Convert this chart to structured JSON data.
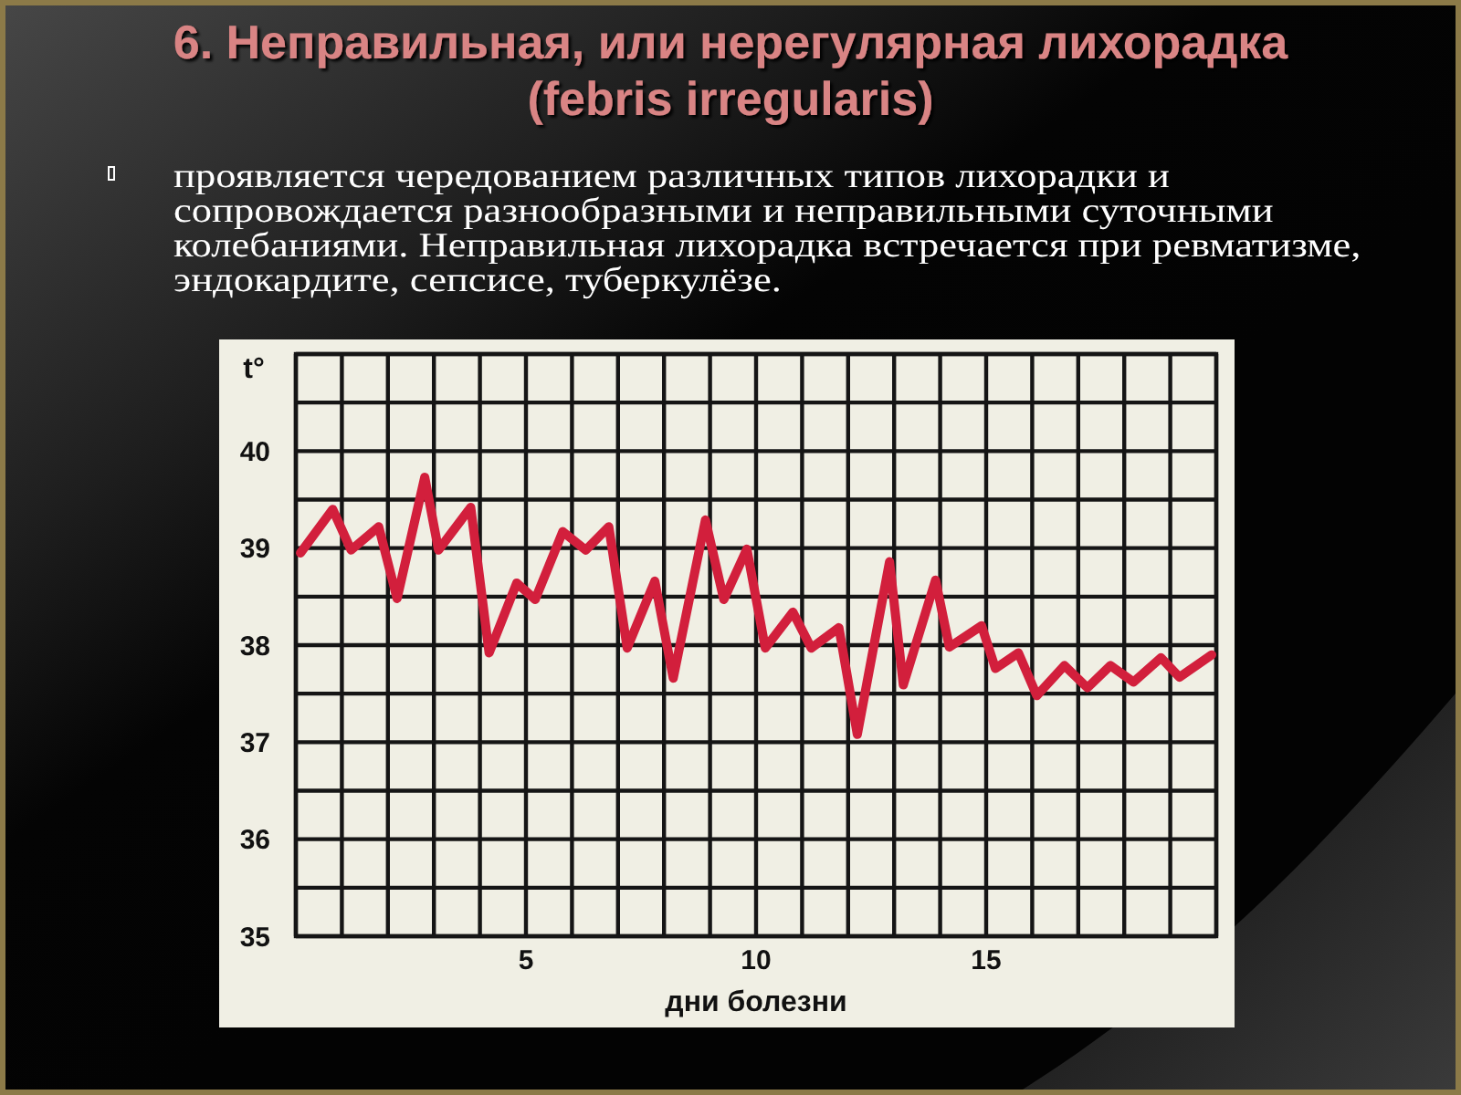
{
  "chart_data": {
    "type": "line",
    "title": "6. Неправильная, или нерегулярная лихорадка (febris irregularis)",
    "subtitle": "проявляется чередованием различных типов лихорадки и сопровождается разнообразными и неправильными суточными колебаниями. Неправильная лихорадка встречается при ревматизме, эндокардите, сепсисе, туберкулёзе.",
    "xlabel": "дни болезни",
    "ylabel": "t°",
    "x": [
      0.1,
      0.8,
      1.2,
      1.8,
      2.2,
      2.8,
      3.1,
      3.8,
      4.2,
      4.8,
      5.2,
      5.8,
      6.3,
      6.8,
      7.2,
      7.8,
      8.2,
      8.9,
      9.3,
      9.8,
      10.2,
      10.8,
      11.2,
      11.8,
      12.2,
      12.9,
      13.2,
      13.9,
      14.2,
      14.9,
      15.2,
      15.7,
      16.1,
      16.7,
      17.2,
      17.7,
      18.2,
      18.8,
      19.2,
      19.9
    ],
    "series": [
      {
        "color": "#d21f3c",
        "values": [
          38.95,
          39.4,
          38.98,
          39.22,
          38.48,
          39.73,
          38.98,
          39.42,
          37.92,
          38.64,
          38.47,
          39.17,
          38.98,
          39.22,
          37.97,
          38.66,
          37.66,
          39.29,
          38.47,
          38.99,
          37.97,
          38.34,
          37.97,
          38.18,
          37.08,
          38.86,
          37.59,
          38.67,
          37.98,
          38.2,
          37.76,
          37.92,
          37.48,
          37.79,
          37.56,
          37.79,
          37.62,
          37.87,
          37.67,
          37.9
        ]
      }
    ],
    "xlim": [
      0,
      20
    ],
    "xticks": [
      {
        "value": 0,
        "label": null
      },
      {
        "value": 1,
        "label": null
      },
      {
        "value": 2,
        "label": null
      },
      {
        "value": 3,
        "label": null
      },
      {
        "value": 4,
        "label": null
      },
      5,
      {
        "value": 6,
        "label": null
      },
      {
        "value": 7,
        "label": null
      },
      {
        "value": 8,
        "label": null
      },
      {
        "value": 9,
        "label": null
      },
      10,
      {
        "value": 11,
        "label": null
      },
      {
        "value": 12,
        "label": null
      },
      {
        "value": 13,
        "label": null
      },
      {
        "value": 14,
        "label": null
      },
      15,
      {
        "value": 16,
        "label": null
      },
      {
        "value": 17,
        "label": null
      },
      {
        "value": 18,
        "label": null
      },
      {
        "value": 19,
        "label": null
      },
      {
        "value": 20,
        "label": null
      }
    ],
    "ylim": [
      35,
      41
    ],
    "yticks": [
      35,
      {
        "value": 35.5,
        "label": null
      },
      36,
      {
        "value": 36.5,
        "label": null
      },
      37,
      {
        "value": 37.5,
        "label": null
      },
      38,
      {
        "value": 38.5,
        "label": null
      },
      39,
      {
        "value": 39.5,
        "label": null
      },
      40,
      {
        "value": 40.5,
        "label": null
      },
      {
        "value": 41,
        "label": null
      }
    ],
    "grid": true
  }
}
